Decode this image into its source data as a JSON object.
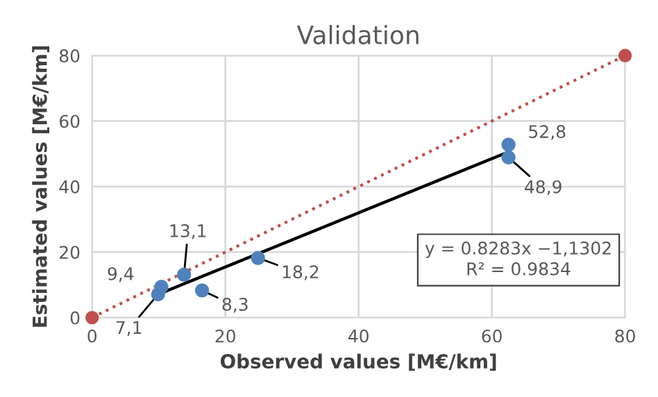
{
  "chart_data": {
    "type": "scatter",
    "title": "Validation",
    "xlabel": "Observed values [M€/km]",
    "ylabel": "Estimated values [M€/km]",
    "xlim": [
      0,
      80
    ],
    "ylim": [
      0,
      80
    ],
    "xticks": [
      0,
      20,
      40,
      60,
      80
    ],
    "yticks": [
      0,
      20,
      40,
      60,
      80
    ],
    "grid": true,
    "series": [
      {
        "type": "line",
        "color": "#c0504d",
        "x": [
          0,
          80
        ],
        "values": [
          0,
          80
        ],
        "marker": "circle",
        "line_style": "dotted"
      },
      {
        "type": "line",
        "color": "#000000",
        "x": [
          9.9,
          62.5
        ],
        "values": [
          7.1,
          50.6
        ],
        "marker": "none",
        "line_style": "solid"
      },
      {
        "color": "#4f81bd",
        "marker": "circle",
        "x": [
          9.9,
          10.4,
          13.8,
          16.5,
          24.9,
          62.5,
          62.5
        ],
        "values": [
          7.1,
          9.4,
          13.1,
          8.3,
          18.2,
          52.8,
          48.9
        ],
        "value_labels": [
          "7,1",
          "9,4",
          "13,1",
          "8,3",
          "18,2",
          "52,8",
          "48,9"
        ]
      }
    ],
    "annotations": [
      "y = 0.8283x −1,1302",
      "R² = 0.9834"
    ]
  }
}
